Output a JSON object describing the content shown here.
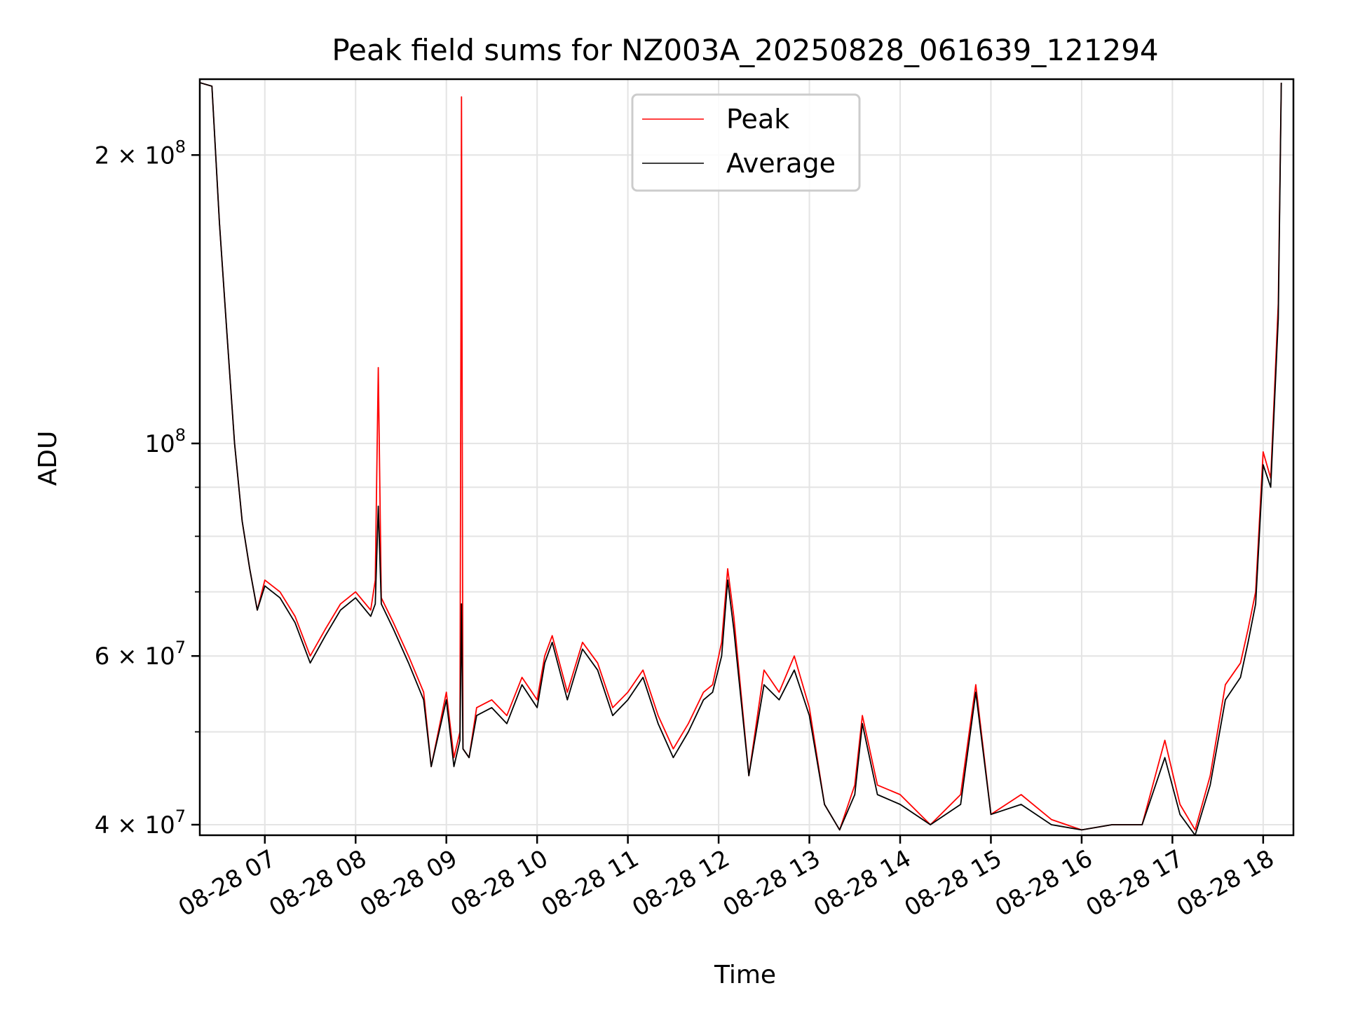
{
  "chart_data": {
    "type": "line",
    "title": "Peak field sums for NZ003A_20250828_061639_121294",
    "xlabel": "Time",
    "ylabel": "ADU",
    "y_scale": "log",
    "ylim": [
      39000000,
      240000000
    ],
    "xlim": [
      "2025-08-28 06:17",
      "2025-08-28 18:20"
    ],
    "grid": true,
    "legend_position": "top-center",
    "x_ticks": [
      "2025-08-28 07:00",
      "2025-08-28 08:00",
      "2025-08-28 09:00",
      "2025-08-28 10:00",
      "2025-08-28 11:00",
      "2025-08-28 12:00",
      "2025-08-28 13:00",
      "2025-08-28 14:00",
      "2025-08-28 15:00",
      "2025-08-28 16:00",
      "2025-08-28 17:00",
      "2025-08-28 18:00"
    ],
    "x_tick_labels": [
      "08-28 07",
      "08-28 08",
      "08-28 09",
      "08-28 10",
      "08-28 11",
      "08-28 12",
      "08-28 13",
      "08-28 14",
      "08-28 15",
      "08-28 16",
      "08-28 17",
      "08-28 18"
    ],
    "y_ticks": [
      {
        "value": 40000000,
        "mantissa": "4",
        "exp": "7"
      },
      {
        "value": 60000000,
        "mantissa": "6",
        "exp": "7"
      },
      {
        "value": 100000000,
        "mantissa": "",
        "exp": "8"
      },
      {
        "value": 200000000,
        "mantissa": "2",
        "exp": "8"
      }
    ],
    "y_minor_ticks": [
      50000000,
      70000000,
      80000000,
      90000000
    ],
    "series": [
      {
        "name": "Peak",
        "color": "#ff0000",
        "x": [
          "2025-08-28 06:17",
          "2025-08-28 06:25",
          "2025-08-28 06:30",
          "2025-08-28 06:35",
          "2025-08-28 06:40",
          "2025-08-28 06:45",
          "2025-08-28 06:50",
          "2025-08-28 06:55",
          "2025-08-28 07:00",
          "2025-08-28 07:10",
          "2025-08-28 07:20",
          "2025-08-28 07:30",
          "2025-08-28 07:40",
          "2025-08-28 07:50",
          "2025-08-28 08:00",
          "2025-08-28 08:10",
          "2025-08-28 08:13",
          "2025-08-28 08:15",
          "2025-08-28 08:17",
          "2025-08-28 08:25",
          "2025-08-28 08:35",
          "2025-08-28 08:45",
          "2025-08-28 08:50",
          "2025-08-28 09:00",
          "2025-08-28 09:05",
          "2025-08-28 09:09",
          "2025-08-28 09:10",
          "2025-08-28 09:11",
          "2025-08-28 09:15",
          "2025-08-28 09:20",
          "2025-08-28 09:30",
          "2025-08-28 09:40",
          "2025-08-28 09:50",
          "2025-08-28 10:00",
          "2025-08-28 10:05",
          "2025-08-28 10:10",
          "2025-08-28 10:20",
          "2025-08-28 10:30",
          "2025-08-28 10:40",
          "2025-08-28 10:50",
          "2025-08-28 11:00",
          "2025-08-28 11:10",
          "2025-08-28 11:20",
          "2025-08-28 11:30",
          "2025-08-28 11:40",
          "2025-08-28 11:50",
          "2025-08-28 11:56",
          "2025-08-28 12:02",
          "2025-08-28 12:06",
          "2025-08-28 12:10",
          "2025-08-28 12:20",
          "2025-08-28 12:30",
          "2025-08-28 12:40",
          "2025-08-28 12:50",
          "2025-08-28 13:00",
          "2025-08-28 13:10",
          "2025-08-28 13:20",
          "2025-08-28 13:30",
          "2025-08-28 13:35",
          "2025-08-28 13:45",
          "2025-08-28 14:00",
          "2025-08-28 14:20",
          "2025-08-28 14:40",
          "2025-08-28 14:50",
          "2025-08-28 15:00",
          "2025-08-28 15:20",
          "2025-08-28 15:40",
          "2025-08-28 16:00",
          "2025-08-28 16:20",
          "2025-08-28 16:40",
          "2025-08-28 16:55",
          "2025-08-28 17:05",
          "2025-08-28 17:15",
          "2025-08-28 17:25",
          "2025-08-28 17:35",
          "2025-08-28 17:45",
          "2025-08-28 17:50",
          "2025-08-28 17:55",
          "2025-08-28 18:00",
          "2025-08-28 18:05",
          "2025-08-28 18:10",
          "2025-08-28 18:12"
        ],
        "y": [
          238000000,
          236000000,
          170000000,
          130000000,
          100000000,
          83000000,
          74000000,
          67000000,
          72000000,
          70000000,
          66000000,
          60000000,
          64000000,
          68000000,
          70000000,
          67000000,
          72000000,
          120000000,
          69000000,
          65000000,
          60000000,
          55000000,
          46000000,
          55000000,
          47000000,
          50000000,
          230000000,
          48000000,
          47000000,
          53000000,
          54000000,
          52000000,
          57000000,
          54000000,
          60000000,
          63000000,
          55000000,
          62000000,
          59000000,
          53000000,
          55000000,
          58000000,
          52000000,
          48000000,
          51000000,
          55000000,
          56000000,
          62000000,
          74000000,
          66000000,
          45000000,
          58000000,
          55000000,
          60000000,
          53000000,
          42000000,
          39500000,
          44000000,
          52000000,
          44000000,
          43000000,
          40000000,
          43000000,
          56000000,
          41000000,
          43000000,
          40500000,
          39500000,
          40000000,
          40000000,
          49000000,
          42000000,
          39500000,
          45000000,
          56000000,
          59000000,
          64000000,
          70000000,
          98000000,
          92000000,
          140000000,
          238000000
        ]
      },
      {
        "name": "Average",
        "color": "#000000",
        "x": [
          "2025-08-28 06:17",
          "2025-08-28 06:25",
          "2025-08-28 06:30",
          "2025-08-28 06:35",
          "2025-08-28 06:40",
          "2025-08-28 06:45",
          "2025-08-28 06:50",
          "2025-08-28 06:55",
          "2025-08-28 07:00",
          "2025-08-28 07:10",
          "2025-08-28 07:20",
          "2025-08-28 07:30",
          "2025-08-28 07:40",
          "2025-08-28 07:50",
          "2025-08-28 08:00",
          "2025-08-28 08:10",
          "2025-08-28 08:13",
          "2025-08-28 08:15",
          "2025-08-28 08:17",
          "2025-08-28 08:25",
          "2025-08-28 08:35",
          "2025-08-28 08:45",
          "2025-08-28 08:50",
          "2025-08-28 09:00",
          "2025-08-28 09:05",
          "2025-08-28 09:09",
          "2025-08-28 09:10",
          "2025-08-28 09:11",
          "2025-08-28 09:15",
          "2025-08-28 09:20",
          "2025-08-28 09:30",
          "2025-08-28 09:40",
          "2025-08-28 09:50",
          "2025-08-28 10:00",
          "2025-08-28 10:05",
          "2025-08-28 10:10",
          "2025-08-28 10:20",
          "2025-08-28 10:30",
          "2025-08-28 10:40",
          "2025-08-28 10:50",
          "2025-08-28 11:00",
          "2025-08-28 11:10",
          "2025-08-28 11:20",
          "2025-08-28 11:30",
          "2025-08-28 11:40",
          "2025-08-28 11:50",
          "2025-08-28 11:56",
          "2025-08-28 12:02",
          "2025-08-28 12:06",
          "2025-08-28 12:10",
          "2025-08-28 12:20",
          "2025-08-28 12:30",
          "2025-08-28 12:40",
          "2025-08-28 12:50",
          "2025-08-28 13:00",
          "2025-08-28 13:10",
          "2025-08-28 13:20",
          "2025-08-28 13:30",
          "2025-08-28 13:35",
          "2025-08-28 13:45",
          "2025-08-28 14:00",
          "2025-08-28 14:20",
          "2025-08-28 14:40",
          "2025-08-28 14:50",
          "2025-08-28 15:00",
          "2025-08-28 15:20",
          "2025-08-28 15:40",
          "2025-08-28 16:00",
          "2025-08-28 16:20",
          "2025-08-28 16:40",
          "2025-08-28 16:55",
          "2025-08-28 17:05",
          "2025-08-28 17:15",
          "2025-08-28 17:25",
          "2025-08-28 17:35",
          "2025-08-28 17:45",
          "2025-08-28 17:50",
          "2025-08-28 17:55",
          "2025-08-28 18:00",
          "2025-08-28 18:05",
          "2025-08-28 18:10",
          "2025-08-28 18:12"
        ],
        "y": [
          238000000,
          236000000,
          170000000,
          130000000,
          100000000,
          83000000,
          74000000,
          67000000,
          71000000,
          69000000,
          65000000,
          59000000,
          63000000,
          67000000,
          69000000,
          66000000,
          68000000,
          86000000,
          68000000,
          64000000,
          59000000,
          54000000,
          46000000,
          54000000,
          46000000,
          49000000,
          68000000,
          48000000,
          47000000,
          52000000,
          53000000,
          51000000,
          56000000,
          53000000,
          59000000,
          62000000,
          54000000,
          61000000,
          58000000,
          52000000,
          54000000,
          57000000,
          51000000,
          47000000,
          50000000,
          54000000,
          55000000,
          60000000,
          72000000,
          64000000,
          45000000,
          56000000,
          54000000,
          58000000,
          52000000,
          42000000,
          39500000,
          43000000,
          51000000,
          43000000,
          42000000,
          40000000,
          42000000,
          55000000,
          41000000,
          42000000,
          40000000,
          39500000,
          40000000,
          40000000,
          47000000,
          41000000,
          39000000,
          44000000,
          54000000,
          57000000,
          62000000,
          68000000,
          95000000,
          90000000,
          135000000,
          238000000
        ]
      }
    ]
  }
}
